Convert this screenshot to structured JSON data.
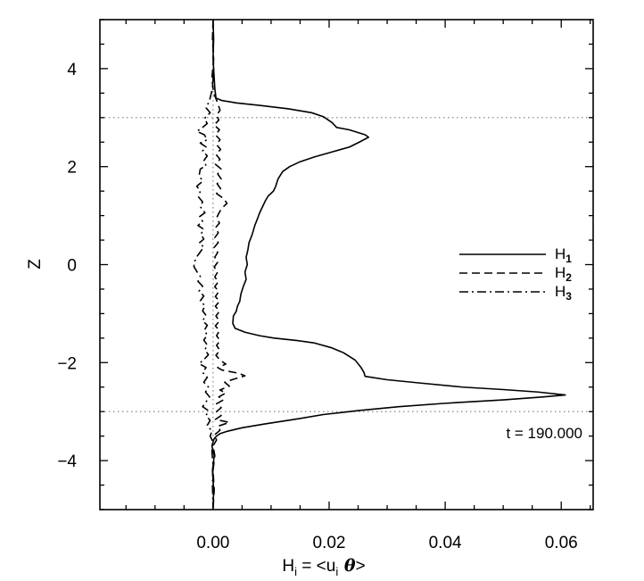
{
  "chart_data": {
    "type": "line",
    "title": "",
    "xlabel": {
      "base": "H",
      "sub": "i",
      "mid": " = <u",
      "sub2": "i",
      "sym": " θ",
      "end": ">"
    },
    "ylabel": "Z",
    "xlim": [
      -0.0195,
      0.0655
    ],
    "ylim": [
      -5.0,
      5.0
    ],
    "x_ticks": [
      {
        "value": 0.0,
        "label": "0.00"
      },
      {
        "value": 0.02,
        "label": "0.02"
      },
      {
        "value": 0.04,
        "label": "0.04"
      },
      {
        "value": 0.06,
        "label": "0.06"
      }
    ],
    "y_ticks": [
      {
        "value": -4,
        "label": "−4"
      },
      {
        "value": -2,
        "label": "−2"
      },
      {
        "value": 0,
        "label": "0"
      },
      {
        "value": 2,
        "label": "2"
      },
      {
        "value": 4,
        "label": "4"
      }
    ],
    "x_minor_step": 0.005,
    "y_minor_step": 0.5,
    "grid": false,
    "reference_lines": {
      "horizontal": [
        3.0,
        -3.0
      ],
      "vertical": [
        0.0
      ]
    },
    "legend": {
      "position": "right",
      "entries": [
        {
          "series": 0,
          "base": "H",
          "sub": "1"
        },
        {
          "series": 1,
          "base": "H",
          "sub": "2"
        },
        {
          "series": 2,
          "base": "H",
          "sub": "3"
        }
      ]
    },
    "annotation": "t = 190.000",
    "series": [
      {
        "name": "H1",
        "style": "solid",
        "points": [
          [
            0.0,
            5.0
          ],
          [
            0.0001,
            4.6
          ],
          [
            0.0,
            4.2
          ],
          [
            0.0002,
            3.8
          ],
          [
            0.0003,
            3.6
          ],
          [
            0.0005,
            3.4
          ],
          [
            0.0015,
            3.35
          ],
          [
            0.004,
            3.3
          ],
          [
            0.008,
            3.25
          ],
          [
            0.013,
            3.18
          ],
          [
            0.017,
            3.1
          ],
          [
            0.019,
            3.02
          ],
          [
            0.0205,
            2.9
          ],
          [
            0.0213,
            2.8
          ],
          [
            0.0235,
            2.75
          ],
          [
            0.0262,
            2.65
          ],
          [
            0.0268,
            2.6
          ],
          [
            0.0252,
            2.5
          ],
          [
            0.0235,
            2.4
          ],
          [
            0.0205,
            2.3
          ],
          [
            0.0175,
            2.2
          ],
          [
            0.015,
            2.1
          ],
          [
            0.0132,
            2.0
          ],
          [
            0.012,
            1.9
          ],
          [
            0.0112,
            1.75
          ],
          [
            0.0108,
            1.6
          ],
          [
            0.0104,
            1.5
          ],
          [
            0.0095,
            1.4
          ],
          [
            0.009,
            1.3
          ],
          [
            0.0086,
            1.2
          ],
          [
            0.008,
            1.05
          ],
          [
            0.0077,
            0.95
          ],
          [
            0.0072,
            0.8
          ],
          [
            0.0067,
            0.6
          ],
          [
            0.0062,
            0.45
          ],
          [
            0.006,
            0.3
          ],
          [
            0.0057,
            0.15
          ],
          [
            0.0059,
            0.0
          ],
          [
            0.0055,
            -0.15
          ],
          [
            0.0057,
            -0.3
          ],
          [
            0.0052,
            -0.45
          ],
          [
            0.0048,
            -0.6
          ],
          [
            0.0046,
            -0.75
          ],
          [
            0.0042,
            -0.85
          ],
          [
            0.004,
            -0.95
          ],
          [
            0.0035,
            -1.05
          ],
          [
            0.0034,
            -1.2
          ],
          [
            0.0038,
            -1.3
          ],
          [
            0.0055,
            -1.38
          ],
          [
            0.008,
            -1.45
          ],
          [
            0.0105,
            -1.5
          ],
          [
            0.0145,
            -1.55
          ],
          [
            0.0175,
            -1.6
          ],
          [
            0.0205,
            -1.7
          ],
          [
            0.0225,
            -1.8
          ],
          [
            0.0245,
            -1.95
          ],
          [
            0.0255,
            -2.1
          ],
          [
            0.026,
            -2.2
          ],
          [
            0.0262,
            -2.28
          ],
          [
            0.03,
            -2.35
          ],
          [
            0.036,
            -2.42
          ],
          [
            0.043,
            -2.5
          ],
          [
            0.05,
            -2.55
          ],
          [
            0.056,
            -2.6
          ],
          [
            0.0607,
            -2.66
          ],
          [
            0.057,
            -2.7
          ],
          [
            0.05,
            -2.76
          ],
          [
            0.04,
            -2.83
          ],
          [
            0.032,
            -2.9
          ],
          [
            0.025,
            -2.98
          ],
          [
            0.019,
            -3.06
          ],
          [
            0.0145,
            -3.15
          ],
          [
            0.009,
            -3.25
          ],
          [
            0.005,
            -3.33
          ],
          [
            0.0025,
            -3.4
          ],
          [
            0.0012,
            -3.45
          ],
          [
            0.0006,
            -3.5
          ],
          [
            0.0002,
            -3.55
          ],
          [
            0.0,
            -3.62
          ],
          [
            -0.0002,
            -3.7
          ],
          [
            0.0002,
            -3.9
          ],
          [
            -0.0001,
            -4.2
          ],
          [
            0.0001,
            -4.6
          ],
          [
            0.0,
            -5.0
          ]
        ]
      },
      {
        "name": "H2",
        "style": "dashed",
        "points": [
          [
            0.0,
            5.0
          ],
          [
            -0.0001,
            4.6
          ],
          [
            0.0001,
            4.2
          ],
          [
            -0.0002,
            3.8
          ],
          [
            0.0001,
            3.5
          ],
          [
            0.0008,
            3.3
          ],
          [
            0.0012,
            3.15
          ],
          [
            0.0006,
            3.05
          ],
          [
            0.001,
            2.95
          ],
          [
            0.0002,
            2.85
          ],
          [
            0.0011,
            2.75
          ],
          [
            0.0004,
            2.65
          ],
          [
            0.0012,
            2.55
          ],
          [
            0.0006,
            2.45
          ],
          [
            0.0013,
            2.35
          ],
          [
            0.0005,
            2.25
          ],
          [
            0.0012,
            2.15
          ],
          [
            0.0004,
            2.05
          ],
          [
            0.0014,
            1.95
          ],
          [
            0.0008,
            1.85
          ],
          [
            0.0014,
            1.75
          ],
          [
            0.0007,
            1.65
          ],
          [
            0.0013,
            1.55
          ],
          [
            0.0006,
            1.45
          ],
          [
            0.0018,
            1.35
          ],
          [
            0.0024,
            1.25
          ],
          [
            0.0015,
            1.15
          ],
          [
            0.001,
            1.05
          ],
          [
            0.0006,
            0.95
          ],
          [
            0.0011,
            0.85
          ],
          [
            0.0004,
            0.75
          ],
          [
            0.0009,
            0.65
          ],
          [
            0.0003,
            0.55
          ],
          [
            0.0009,
            0.45
          ],
          [
            0.0002,
            0.35
          ],
          [
            0.0008,
            0.25
          ],
          [
            0.0003,
            0.15
          ],
          [
            0.0008,
            0.05
          ],
          [
            0.0002,
            -0.05
          ],
          [
            0.0008,
            -0.15
          ],
          [
            0.0003,
            -0.25
          ],
          [
            0.0009,
            -0.35
          ],
          [
            0.0003,
            -0.45
          ],
          [
            0.001,
            -0.55
          ],
          [
            0.0004,
            -0.65
          ],
          [
            0.0011,
            -0.75
          ],
          [
            0.0004,
            -0.85
          ],
          [
            0.0011,
            -0.95
          ],
          [
            0.0005,
            -1.05
          ],
          [
            0.0011,
            -1.15
          ],
          [
            0.0004,
            -1.25
          ],
          [
            0.0011,
            -1.35
          ],
          [
            0.0006,
            -1.45
          ],
          [
            0.0012,
            -1.55
          ],
          [
            0.0006,
            -1.65
          ],
          [
            0.0012,
            -1.75
          ],
          [
            0.0005,
            -1.85
          ],
          [
            0.0012,
            -1.95
          ],
          [
            0.0022,
            -2.03
          ],
          [
            0.0008,
            -2.1
          ],
          [
            0.0015,
            -2.15
          ],
          [
            0.0045,
            -2.22
          ],
          [
            0.0055,
            -2.27
          ],
          [
            0.0035,
            -2.34
          ],
          [
            0.002,
            -2.4
          ],
          [
            0.0028,
            -2.48
          ],
          [
            0.0012,
            -2.56
          ],
          [
            0.0022,
            -2.62
          ],
          [
            0.001,
            -2.7
          ],
          [
            0.0018,
            -2.76
          ],
          [
            0.0006,
            -2.84
          ],
          [
            0.0014,
            -2.92
          ],
          [
            0.0006,
            -3.0
          ],
          [
            0.0014,
            -3.08
          ],
          [
            0.0004,
            -3.16
          ],
          [
            0.0028,
            -3.22
          ],
          [
            0.0008,
            -3.3
          ],
          [
            0.0012,
            -3.38
          ],
          [
            0.0002,
            -3.48
          ],
          [
            0.0006,
            -3.58
          ],
          [
            0.0,
            -3.7
          ],
          [
            0.0003,
            -3.9
          ],
          [
            0.0,
            -4.2
          ],
          [
            0.0002,
            -4.6
          ],
          [
            0.0,
            -5.0
          ]
        ]
      },
      {
        "name": "H3",
        "style": "dashdot",
        "points": [
          [
            0.0,
            5.0
          ],
          [
            0.0,
            4.5
          ],
          [
            0.0001,
            4.0
          ],
          [
            -0.0001,
            3.6
          ],
          [
            -0.0006,
            3.35
          ],
          [
            -0.0012,
            3.2
          ],
          [
            -0.0005,
            3.1
          ],
          [
            -0.0015,
            2.98
          ],
          [
            -0.001,
            2.88
          ],
          [
            -0.0018,
            2.8
          ],
          [
            -0.0028,
            2.72
          ],
          [
            -0.0015,
            2.65
          ],
          [
            -0.001,
            2.55
          ],
          [
            -0.0022,
            2.48
          ],
          [
            -0.0012,
            2.4
          ],
          [
            -0.0018,
            2.32
          ],
          [
            -0.001,
            2.22
          ],
          [
            -0.0016,
            2.12
          ],
          [
            -0.0012,
            2.02
          ],
          [
            -0.0022,
            1.95
          ],
          [
            -0.0024,
            1.82
          ],
          [
            -0.0018,
            1.7
          ],
          [
            -0.0028,
            1.6
          ],
          [
            -0.0022,
            1.5
          ],
          [
            -0.0025,
            1.38
          ],
          [
            -0.0018,
            1.28
          ],
          [
            -0.0022,
            1.18
          ],
          [
            -0.0014,
            1.06
          ],
          [
            -0.0023,
            0.98
          ],
          [
            -0.0018,
            0.88
          ],
          [
            -0.0026,
            0.8
          ],
          [
            -0.0016,
            0.72
          ],
          [
            -0.0021,
            0.62
          ],
          [
            -0.0016,
            0.52
          ],
          [
            -0.0024,
            0.44
          ],
          [
            -0.0016,
            0.36
          ],
          [
            -0.0022,
            0.26
          ],
          [
            -0.0028,
            0.16
          ],
          [
            -0.0032,
            0.06
          ],
          [
            -0.0033,
            -0.04
          ],
          [
            -0.0028,
            -0.14
          ],
          [
            -0.0022,
            -0.24
          ],
          [
            -0.0026,
            -0.34
          ],
          [
            -0.0018,
            -0.44
          ],
          [
            -0.0024,
            -0.54
          ],
          [
            -0.0016,
            -0.64
          ],
          [
            -0.0022,
            -0.74
          ],
          [
            -0.0014,
            -0.84
          ],
          [
            -0.0018,
            -0.94
          ],
          [
            -0.0012,
            -1.04
          ],
          [
            -0.0018,
            -1.14
          ],
          [
            -0.001,
            -1.24
          ],
          [
            -0.0015,
            -1.34
          ],
          [
            -0.001,
            -1.44
          ],
          [
            -0.0016,
            -1.54
          ],
          [
            -0.001,
            -1.64
          ],
          [
            -0.0014,
            -1.74
          ],
          [
            -0.0008,
            -1.84
          ],
          [
            -0.0016,
            -1.94
          ],
          [
            -0.0024,
            -2.02
          ],
          [
            -0.0012,
            -2.1
          ],
          [
            -0.0018,
            -2.2
          ],
          [
            -0.001,
            -2.3
          ],
          [
            -0.0016,
            -2.4
          ],
          [
            -0.0008,
            -2.5
          ],
          [
            -0.0013,
            -2.6
          ],
          [
            -0.0006,
            -2.7
          ],
          [
            -0.0012,
            -2.8
          ],
          [
            -0.0018,
            -2.9
          ],
          [
            -0.0008,
            -2.98
          ],
          [
            -0.0012,
            -3.08
          ],
          [
            -0.0005,
            -3.18
          ],
          [
            -0.001,
            -3.28
          ],
          [
            -0.0002,
            -3.4
          ],
          [
            -0.0005,
            -3.5
          ],
          [
            0.0,
            -3.62
          ],
          [
            -0.0002,
            -3.8
          ],
          [
            0.0,
            -4.1
          ],
          [
            -0.0001,
            -4.5
          ],
          [
            0.0,
            -5.0
          ]
        ]
      }
    ]
  }
}
